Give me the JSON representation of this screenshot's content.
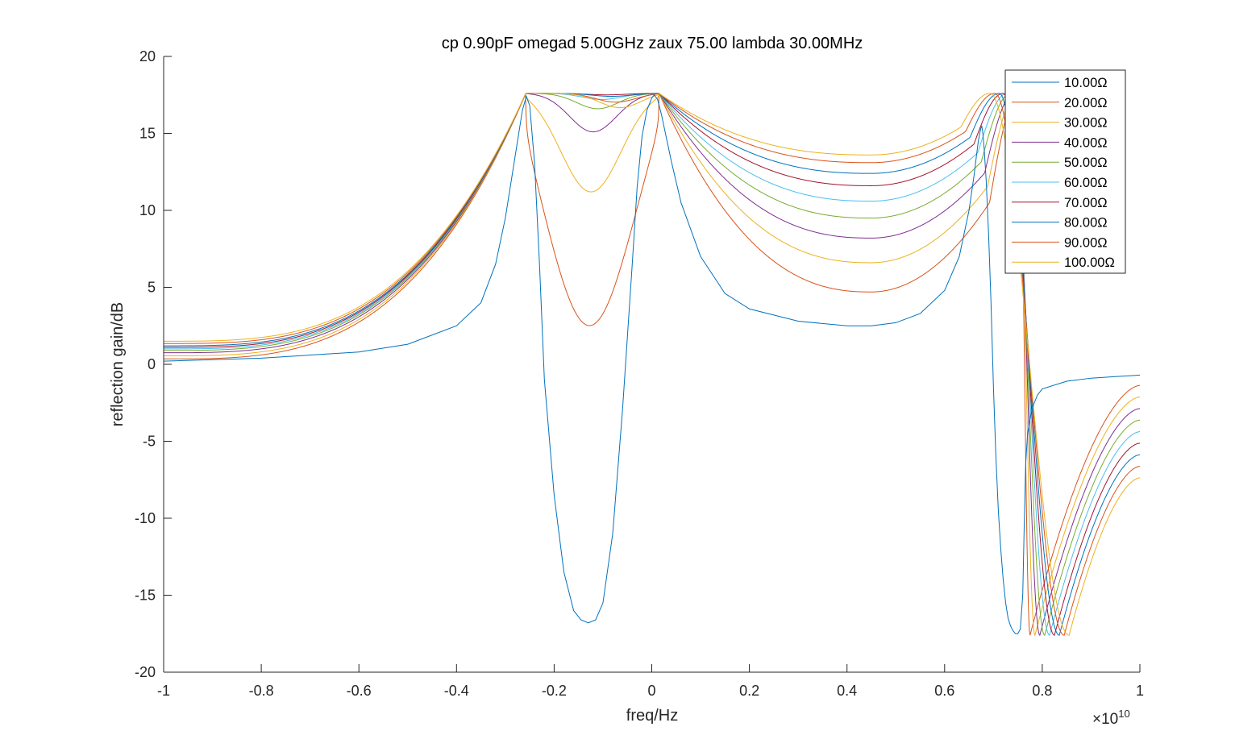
{
  "chart_data": {
    "type": "line",
    "title": "cp 0.90pF omegad 5.00GHz zaux 75.00 lambda 30.00MHz",
    "xlabel": "freq/Hz",
    "ylabel": "reflection gain/dB",
    "x_exponent_label": "×10",
    "x_exponent_power": "10",
    "xlim": [
      -1,
      1
    ],
    "ylim": [
      -20,
      20
    ],
    "xticks": [
      -1,
      -0.8,
      -0.6,
      -0.4,
      -0.2,
      0,
      0.2,
      0.4,
      0.6,
      0.8,
      1
    ],
    "xtick_labels": [
      "-1",
      "-0.8",
      "-0.6",
      "-0.4",
      "-0.2",
      "0",
      "0.2",
      "0.4",
      "0.6",
      "0.8",
      "1"
    ],
    "yticks": [
      -20,
      -15,
      -10,
      -5,
      0,
      5,
      10,
      15,
      20
    ],
    "ytick_labels": [
      "-20",
      "-15",
      "-10",
      "-5",
      "0",
      "5",
      "10",
      "15",
      "20"
    ],
    "grid": false,
    "legend_position": "top-right",
    "series": [
      {
        "name": "10.00Ω",
        "color": "#0072BD",
        "x": [
          -1,
          -0.8,
          -0.6,
          -0.5,
          -0.4,
          -0.35,
          -0.32,
          -0.3,
          -0.28,
          -0.265,
          -0.257,
          -0.25,
          -0.24,
          -0.23,
          -0.22,
          -0.2,
          -0.18,
          -0.16,
          -0.145,
          -0.13,
          -0.115,
          -0.1,
          -0.08,
          -0.06,
          -0.04,
          -0.03,
          -0.02,
          -0.01,
          0,
          0.005,
          0.012,
          0.02,
          0.04,
          0.06,
          0.1,
          0.15,
          0.2,
          0.3,
          0.4,
          0.45,
          0.5,
          0.55,
          0.6,
          0.63,
          0.65,
          0.66,
          0.665,
          0.669,
          0.672,
          0.674,
          0.676,
          0.678,
          0.681,
          0.685,
          0.69,
          0.695,
          0.7,
          0.705,
          0.71,
          0.715,
          0.72,
          0.725,
          0.73,
          0.735,
          0.74,
          0.745,
          0.75,
          0.755,
          0.76,
          0.763,
          0.766,
          0.77,
          0.775,
          0.78,
          0.79,
          0.8,
          0.85,
          0.9,
          0.95,
          1
        ],
        "y": [
          0.2,
          0.4,
          0.8,
          1.3,
          2.5,
          4.0,
          6.5,
          9.5,
          13.5,
          16.5,
          17.4,
          16.8,
          13.0,
          6.5,
          -1.0,
          -8.5,
          -13.5,
          -16.0,
          -16.6,
          -16.8,
          -16.6,
          -15.5,
          -11.0,
          -3.0,
          6.5,
          11.5,
          14.8,
          16.5,
          17.3,
          17.5,
          17.2,
          16.2,
          13.2,
          10.5,
          7.0,
          4.6,
          3.6,
          2.8,
          2.5,
          2.5,
          2.7,
          3.3,
          4.8,
          7.0,
          10.0,
          12.2,
          13.5,
          14.5,
          15.0,
          15.3,
          15.5,
          15.1,
          14.0,
          12.0,
          8.5,
          4.0,
          -1.5,
          -6.0,
          -9.5,
          -12.0,
          -14.0,
          -15.5,
          -16.5,
          -17.0,
          -17.3,
          -17.5,
          -17.5,
          -17.2,
          -15.0,
          -10.5,
          -6.5,
          -4.5,
          -3.5,
          -2.8,
          -2.0,
          -1.6,
          -1.1,
          -0.9,
          -0.8,
          -0.7
        ]
      }
    ],
    "families": [
      {
        "name": "20.00Ω",
        "color": "#D95319",
        "low": 0.35,
        "minPos": -0.13,
        "minVal": 2.5,
        "valley": 4.7,
        "ringPos": 0.752,
        "troughPos": 0.775
      },
      {
        "name": "30.00Ω",
        "color": "#EDB120",
        "low": 0.55,
        "minPos": -0.125,
        "minVal": 11.2,
        "valley": 6.6,
        "ringPos": 0.748,
        "troughPos": 0.785
      },
      {
        "name": "40.00Ω",
        "color": "#7E2F8E",
        "low": 0.75,
        "minPos": -0.12,
        "minVal": 15.1,
        "valley": 8.2,
        "ringPos": 0.742,
        "troughPos": 0.795
      },
      {
        "name": "50.00Ω",
        "color": "#77AC30",
        "low": 0.9,
        "minPos": -0.11,
        "minVal": 16.6,
        "valley": 9.5,
        "ringPos": 0.735,
        "troughPos": 0.805
      },
      {
        "name": "60.00Ω",
        "color": "#4DBEEE",
        "low": 1.0,
        "minPos": -0.1,
        "minVal": 17.2,
        "valley": 10.6,
        "ringPos": 0.728,
        "troughPos": 0.815
      },
      {
        "name": "70.00Ω",
        "color": "#A2142F",
        "low": 1.1,
        "minPos": -0.09,
        "minVal": 17.5,
        "valley": 11.6,
        "ringPos": 0.72,
        "troughPos": 0.825
      },
      {
        "name": "80.00Ω",
        "color": "#0072BD",
        "low": 1.2,
        "minPos": -0.08,
        "minVal": 17.4,
        "valley": 12.4,
        "ringPos": 0.712,
        "troughPos": 0.835
      },
      {
        "name": "90.00Ω",
        "color": "#D95319",
        "low": 1.35,
        "minPos": -0.07,
        "minVal": 17.0,
        "valley": 13.1,
        "ringPos": 0.703,
        "troughPos": 0.845
      },
      {
        "name": "100.00Ω",
        "color": "#EDB120",
        "low": 1.5,
        "minPos": -0.06,
        "minVal": 16.6,
        "valley": 13.6,
        "ringPos": 0.693,
        "troughPos": 0.855
      }
    ]
  }
}
